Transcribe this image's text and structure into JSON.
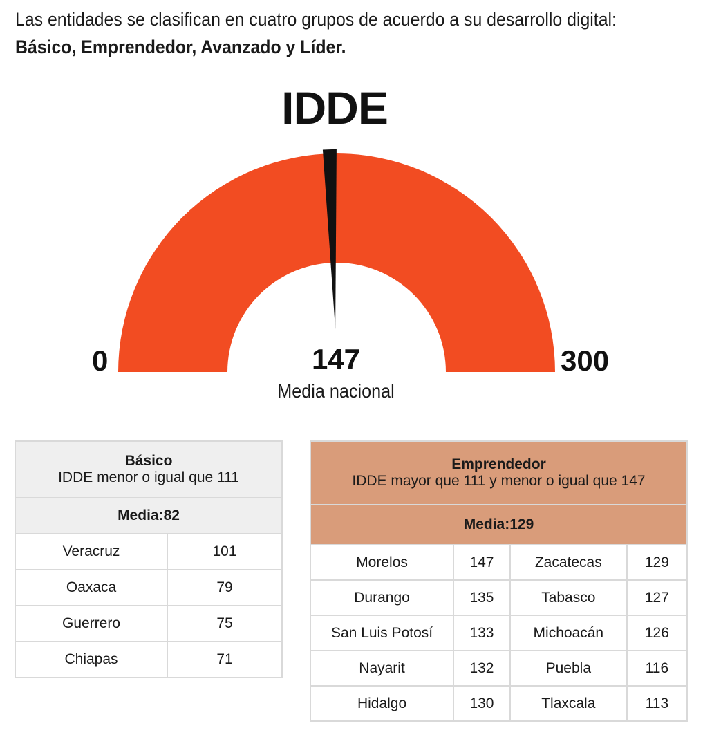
{
  "intro": {
    "line1": "Las entidades se clasifican en cuatro grupos de acuerdo a su desarrollo digital:",
    "line2": "Básico, Emprendedor, Avanzado y Líder."
  },
  "chart_data": {
    "type": "gauge",
    "title": "IDDE",
    "min": 0,
    "max": 300,
    "value": 147,
    "value_label": "Media nacional",
    "colors": {
      "arc": "#f24c22",
      "needle": "#111111"
    }
  },
  "tables": {
    "basico": {
      "name": "Básico",
      "rule": "IDDE menor o igual que 111",
      "media": "Media:82",
      "color": "#efefef",
      "rows": [
        {
          "state": "Veracruz",
          "value": "101"
        },
        {
          "state": "Oaxaca",
          "value": "79"
        },
        {
          "state": "Guerrero",
          "value": "75"
        },
        {
          "state": "Chiapas",
          "value": "71"
        }
      ]
    },
    "emprendedor": {
      "name": "Emprendedor",
      "rule": "IDDE mayor que 111 y menor o igual que 147",
      "media": "Media:129",
      "color": "#d99c7a",
      "rows": [
        {
          "state_a": "Morelos",
          "value_a": "147",
          "state_b": "Zacatecas",
          "value_b": "129"
        },
        {
          "state_a": "Durango",
          "value_a": "135",
          "state_b": "Tabasco",
          "value_b": "127"
        },
        {
          "state_a": "San Luis Potosí",
          "value_a": "133",
          "state_b": "Michoacán",
          "value_b": "126"
        },
        {
          "state_a": "Nayarit",
          "value_a": "132",
          "state_b": "Puebla",
          "value_b": "116"
        },
        {
          "state_a": "Hidalgo",
          "value_a": "130",
          "state_b": "Tlaxcala",
          "value_b": "113"
        }
      ]
    }
  }
}
